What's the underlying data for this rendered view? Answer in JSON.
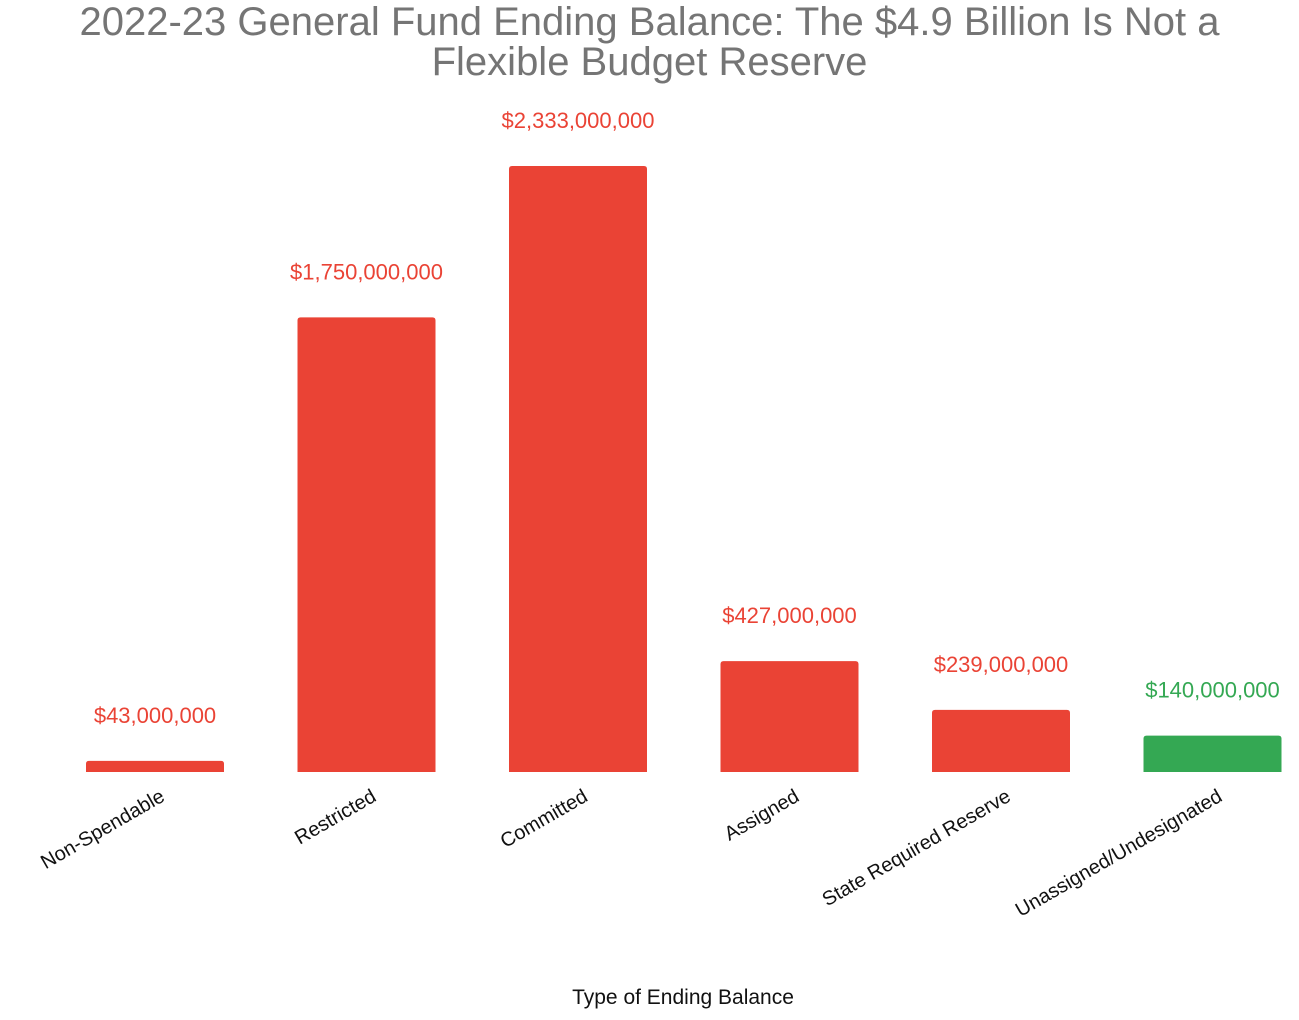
{
  "chart_data": {
    "type": "bar",
    "title": "2022-23 General Fund Ending Balance: The $4.9 Billion Is Not a Flexible Budget Reserve",
    "xlabel": "Type of Ending Balance",
    "ylabel": "",
    "ylim": [
      0,
      2333000000
    ],
    "grid": false,
    "categories": [
      "Non-Spendable",
      "Restricted",
      "Committed",
      "Assigned",
      "State Required Reserve",
      "Unassigned/Undesignated"
    ],
    "values": [
      43000000,
      1750000000,
      2333000000,
      427000000,
      239000000,
      140000000
    ],
    "data_labels": [
      "$43,000,000",
      "$1,750,000,000",
      "$2,333,000,000",
      "$427,000,000",
      "$239,000,000",
      "$140,000,000"
    ],
    "bar_colors": [
      "#ea4335",
      "#ea4335",
      "#ea4335",
      "#ea4335",
      "#ea4335",
      "#34a853"
    ]
  }
}
